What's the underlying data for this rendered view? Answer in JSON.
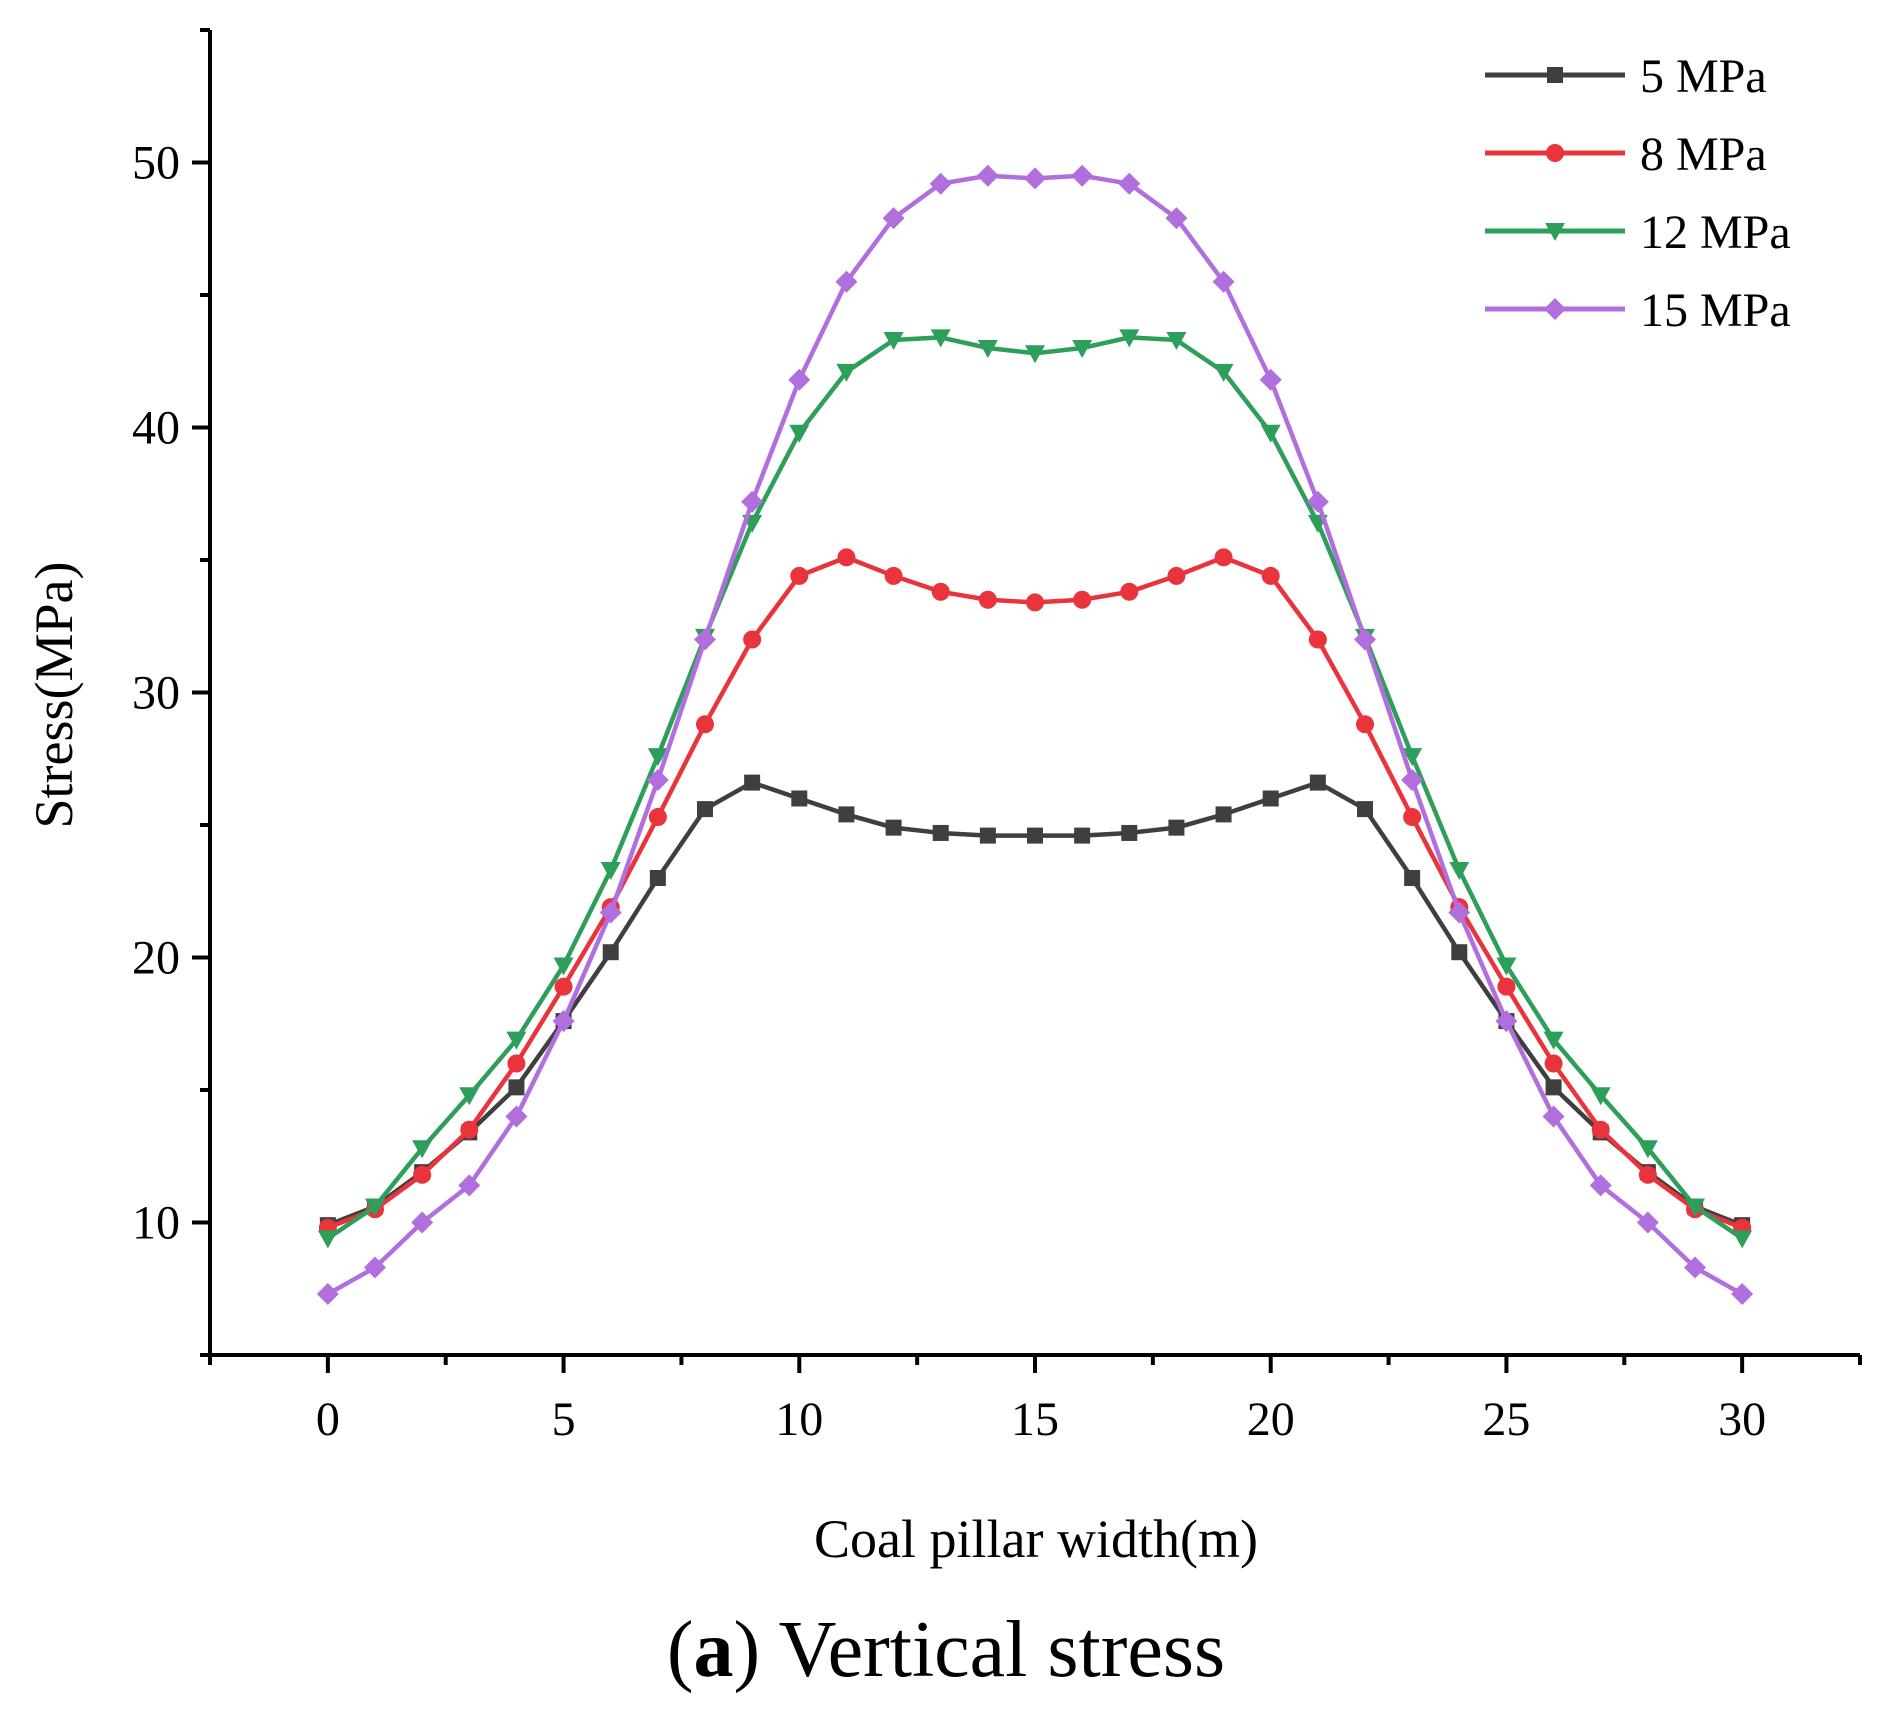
{
  "chart_data": {
    "type": "line",
    "xlabel": "Coal pillar width(m)",
    "ylabel": "Stress(MPa)",
    "caption": {
      "letter": "a",
      "text": "Vertical stress"
    },
    "xlim": [
      -2.5,
      32.5
    ],
    "ylim": [
      5,
      55
    ],
    "x_ticks": [
      0,
      5,
      10,
      15,
      20,
      25,
      30
    ],
    "y_ticks": [
      10,
      20,
      30,
      40,
      50
    ],
    "legend_position": "top-right",
    "grid": false,
    "x": [
      0,
      1,
      2,
      3,
      4,
      5,
      6,
      7,
      8,
      9,
      10,
      11,
      12,
      13,
      14,
      15,
      16,
      17,
      18,
      19,
      20,
      21,
      22,
      23,
      24,
      25,
      26,
      27,
      28,
      29,
      30
    ],
    "series": [
      {
        "name": "5 MPa",
        "color": "#3f3f3f",
        "marker": "square",
        "values": [
          9.9,
          10.6,
          11.9,
          13.4,
          15.1,
          17.6,
          20.2,
          23.0,
          25.6,
          26.6,
          26.0,
          25.4,
          24.9,
          24.7,
          24.6,
          24.6,
          24.6,
          24.7,
          24.9,
          25.4,
          26.0,
          26.6,
          25.6,
          23.0,
          20.2,
          17.6,
          15.1,
          13.4,
          11.9,
          10.6,
          9.9
        ]
      },
      {
        "name": "8 MPa",
        "color": "#e8343a",
        "marker": "circle",
        "values": [
          9.8,
          10.5,
          11.8,
          13.5,
          16.0,
          18.9,
          21.9,
          25.3,
          28.8,
          32.0,
          34.4,
          35.1,
          34.4,
          33.8,
          33.5,
          33.4,
          33.5,
          33.8,
          34.4,
          35.1,
          34.4,
          32.0,
          28.8,
          25.3,
          21.9,
          18.9,
          16.0,
          13.5,
          11.8,
          10.5,
          9.8
        ]
      },
      {
        "name": "12 MPa",
        "color": "#2e9e5b",
        "marker": "triangle-down",
        "values": [
          9.4,
          10.6,
          12.8,
          14.8,
          16.9,
          19.7,
          23.3,
          27.6,
          32.1,
          36.4,
          39.8,
          42.1,
          43.3,
          43.4,
          43.0,
          42.8,
          43.0,
          43.4,
          43.3,
          42.1,
          39.8,
          36.4,
          32.1,
          27.6,
          23.3,
          19.7,
          16.9,
          14.8,
          12.8,
          10.6,
          9.4
        ]
      },
      {
        "name": "15 MPa",
        "color": "#b06fdd",
        "marker": "diamond",
        "values": [
          7.3,
          8.3,
          10.0,
          11.4,
          14.0,
          17.6,
          21.7,
          26.7,
          32.0,
          37.2,
          41.8,
          45.5,
          47.9,
          49.2,
          49.5,
          49.4,
          49.5,
          49.2,
          47.9,
          45.5,
          41.8,
          37.2,
          32.0,
          26.7,
          21.7,
          17.6,
          14.0,
          11.4,
          10.0,
          8.3,
          7.3
        ]
      }
    ]
  }
}
